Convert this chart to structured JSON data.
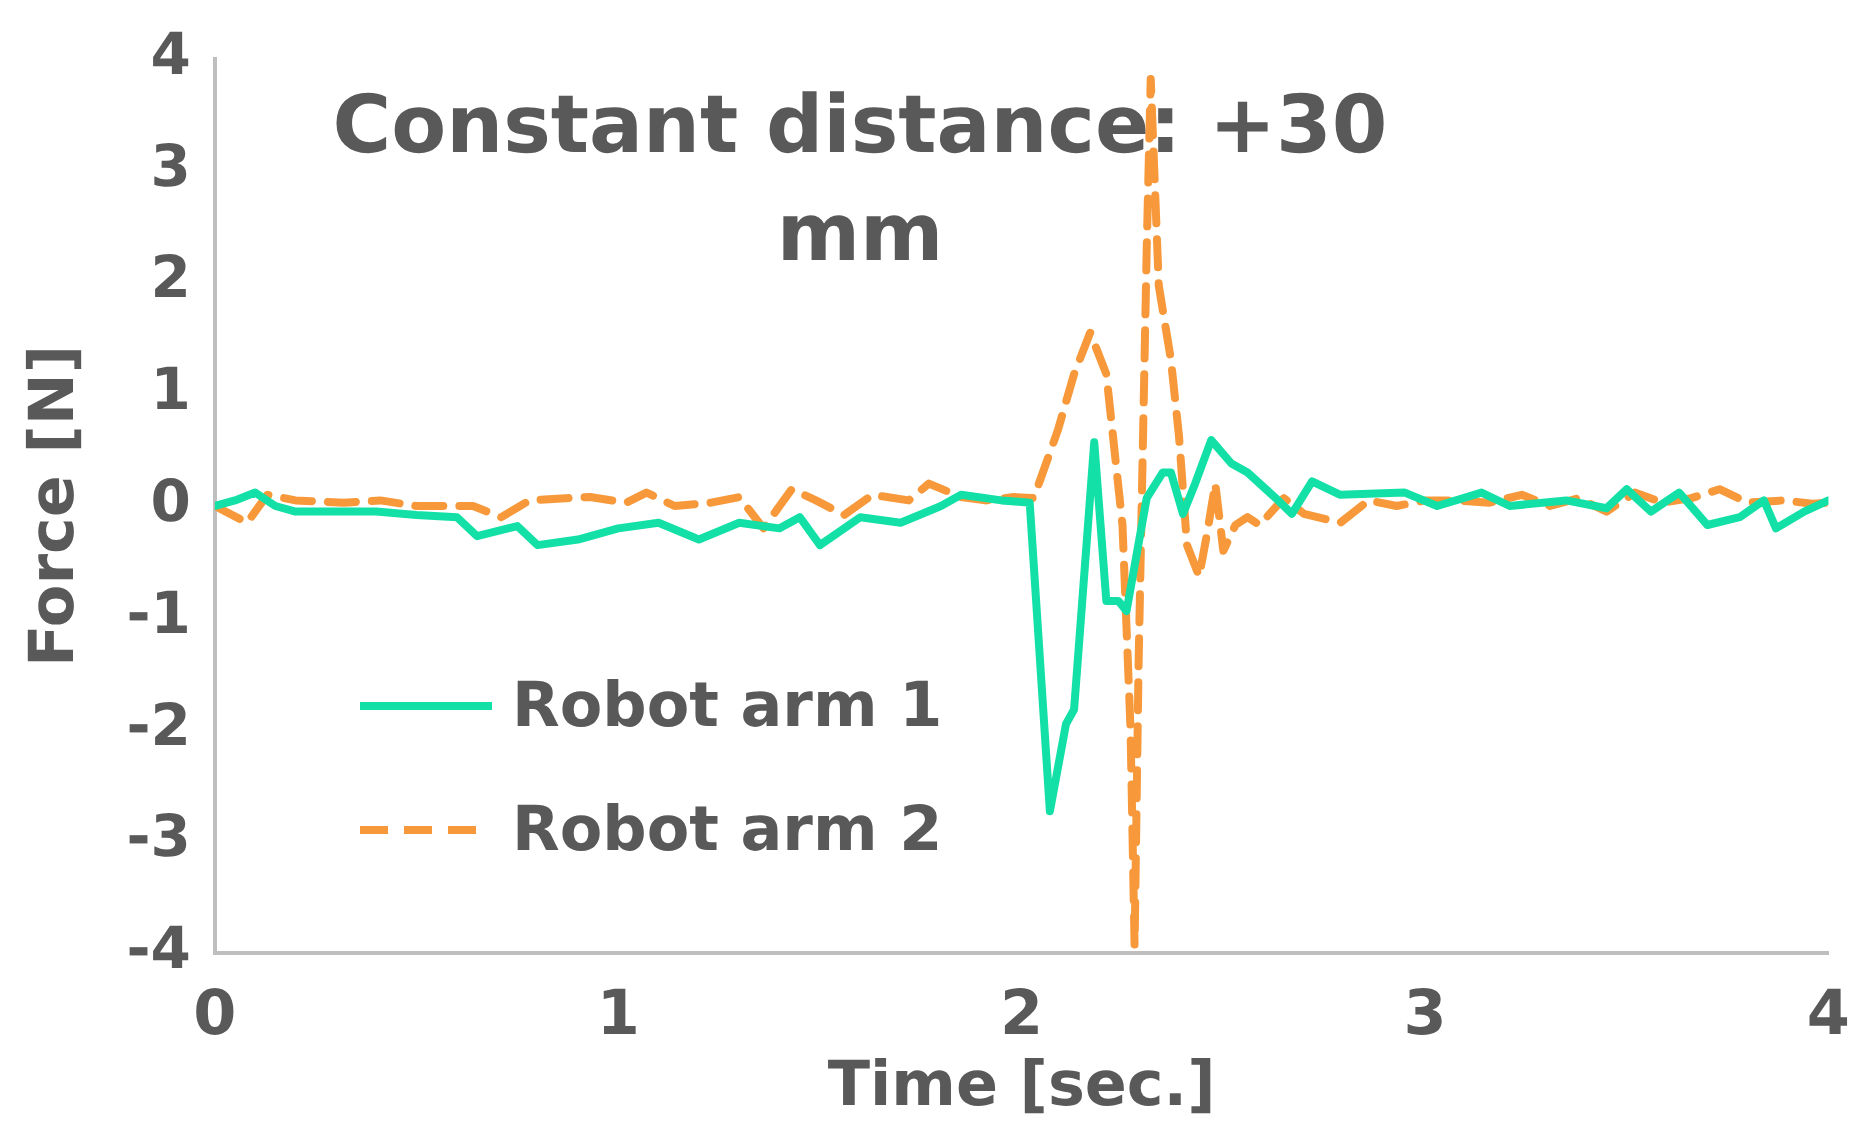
{
  "chart_data": {
    "type": "line",
    "title": "Constant distance: +30 mm",
    "xlabel": "Time [sec.]",
    "ylabel": "Force [N]",
    "xlim": [
      0,
      4
    ],
    "xticks": [
      0,
      1,
      2,
      3,
      4
    ],
    "ylim": [
      -4,
      4
    ],
    "yticks": [
      -4,
      -3,
      -2,
      -1,
      0,
      1,
      2,
      3,
      4
    ],
    "grid": false,
    "legend": "bottom left",
    "marker": "none",
    "series": [
      {
        "name": "Robot arm 1",
        "color": "#13e0a6",
        "line_style": "solid",
        "x": [
          0,
          0.05,
          0.1,
          0.15,
          0.2,
          0.3,
          0.4,
          0.5,
          0.6,
          0.65,
          0.75,
          0.8,
          0.9,
          1.0,
          1.1,
          1.2,
          1.3,
          1.4,
          1.45,
          1.5,
          1.6,
          1.7,
          1.8,
          1.85,
          1.95,
          2.02,
          2.07,
          2.11,
          2.13,
          2.18,
          2.21,
          2.24,
          2.26,
          2.31,
          2.35,
          2.37,
          2.4,
          2.43,
          2.47,
          2.52,
          2.56,
          2.63,
          2.67,
          2.72,
          2.79,
          2.86,
          2.95,
          3.03,
          3.14,
          3.21,
          3.35,
          3.45,
          3.5,
          3.56,
          3.63,
          3.7,
          3.78,
          3.84,
          3.87,
          3.94,
          4.0
        ],
        "values": [
          0,
          0.05,
          0.12,
          0,
          -0.05,
          -0.05,
          -0.05,
          -0.08,
          -0.1,
          -0.27,
          -0.18,
          -0.35,
          -0.3,
          -0.2,
          -0.15,
          -0.3,
          -0.15,
          -0.2,
          -0.1,
          -0.35,
          -0.1,
          -0.15,
          0,
          0.1,
          0.05,
          0.03,
          -2.73,
          -1.95,
          -1.82,
          0.57,
          -0.85,
          -0.85,
          -0.94,
          0.07,
          0.3,
          0.3,
          -0.07,
          0.2,
          0.59,
          0.38,
          0.3,
          0.07,
          -0.07,
          0.22,
          0.1,
          0.11,
          0.12,
          0,
          0.12,
          0,
          0.05,
          -0.02,
          0.15,
          -0.05,
          0.12,
          -0.17,
          -0.1,
          0.05,
          -0.2,
          -0.05,
          0.05
        ]
      },
      {
        "name": "Robot arm 2",
        "color": "#f7993a",
        "line_style": "dashed",
        "x": [
          0,
          0.08,
          0.13,
          0.2,
          0.32,
          0.41,
          0.5,
          0.58,
          0.64,
          0.71,
          0.78,
          0.87,
          0.93,
          1.02,
          1.07,
          1.14,
          1.23,
          1.3,
          1.36,
          1.43,
          1.49,
          1.56,
          1.63,
          1.72,
          1.77,
          1.85,
          1.91,
          1.98,
          2.03,
          2.09,
          2.13,
          2.17,
          2.21,
          2.25,
          2.27,
          2.28,
          2.29,
          2.31,
          2.32,
          2.34,
          2.37,
          2.39,
          2.41,
          2.44,
          2.46,
          2.48,
          2.5,
          2.53,
          2.56,
          2.59,
          2.65,
          2.7,
          2.79,
          2.86,
          2.93,
          3.0,
          3.08,
          3.16,
          3.24,
          3.31,
          3.38,
          3.45,
          3.52,
          3.59,
          3.66,
          3.73,
          3.8,
          3.89,
          3.96,
          4.0
        ],
        "values": [
          0,
          -0.15,
          0.1,
          0.05,
          0.03,
          0.05,
          0,
          0,
          0,
          -0.1,
          0.05,
          0.07,
          0.08,
          0.03,
          0.12,
          0,
          0.03,
          0.08,
          -0.2,
          0.15,
          0.05,
          -0.08,
          0.1,
          0.05,
          0.2,
          0.08,
          0.05,
          0.08,
          0.07,
          0.68,
          1.18,
          1.55,
          1.18,
          -0.17,
          -2.0,
          -3.93,
          -1.4,
          2.29,
          3.82,
          1.97,
          1.31,
          0.63,
          -0.35,
          -0.63,
          -0.24,
          0.2,
          -0.4,
          -0.17,
          -0.1,
          -0.17,
          0.07,
          -0.07,
          -0.15,
          0.05,
          0,
          0.05,
          0.05,
          0.03,
          0.1,
          0,
          0.07,
          -0.05,
          0.12,
          0.03,
          0.07,
          0.15,
          0.03,
          0.05,
          0.02,
          0.03
        ]
      }
    ]
  }
}
